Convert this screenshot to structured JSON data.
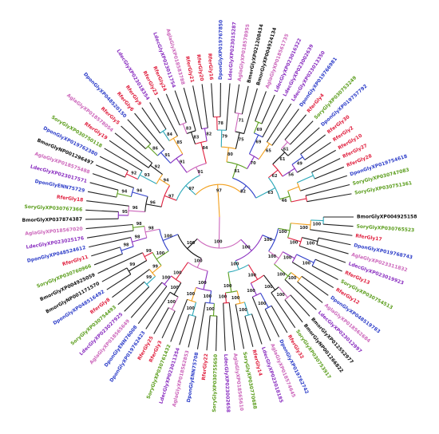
{
  "tree": {
    "colors": {
      "Dpon": "#2f3fc9",
      "Agla": "#cc66bb",
      "Rfer": "#e0203f",
      "Sory": "#5c9e1e",
      "Ldec": "#8a2fc0",
      "Bmor": "#111111"
    },
    "branch_colors": [
      "#cc66bb",
      "#8a2fc0",
      "#2f3fc9",
      "#5c9e1e",
      "#f2a01e",
      "#2aa7b8",
      "#e0203f",
      "#111111"
    ],
    "leaves": [
      {
        "label": "BmorGlyXP004925158",
        "group": "Bmor"
      },
      {
        "label": "SoryGlyXP030765523",
        "group": "Sory"
      },
      {
        "label": "RferGly17",
        "group": "Rfer"
      },
      {
        "label": "DponGlyXP019768743",
        "group": "Dpon"
      },
      {
        "label": "AglaGlyXP023311832",
        "group": "Agla"
      },
      {
        "label": "LdecGlyXP023019923",
        "group": "Ldec"
      },
      {
        "label": "RferGly13",
        "group": "Rfer"
      },
      {
        "label": "SoryGlyXP030754513",
        "group": "Sory"
      },
      {
        "label": "RferGly12",
        "group": "Rfer"
      },
      {
        "label": "DponGlyXP048519783",
        "group": "Dpon"
      },
      {
        "label": "AglaGlyXP018562684",
        "group": "Agla"
      },
      {
        "label": "LdecGlyXP023012997",
        "group": "Ldec"
      },
      {
        "label": "BmorGlyXP012552977",
        "group": "Bmor"
      },
      {
        "label": "BmorGlyNP001266822",
        "group": "Bmor"
      },
      {
        "label": "SoryGlyXP030753917",
        "group": "Sory"
      },
      {
        "label": "RferGly32",
        "group": "Rfer"
      },
      {
        "label": "DponGlyXP019762742",
        "group": "Dpon"
      },
      {
        "label": "AglaGlyXP018574645",
        "group": "Agla"
      },
      {
        "label": "LdecGlyXP023018185",
        "group": "Ldec"
      },
      {
        "label": "RferGly14",
        "group": "Rfer"
      },
      {
        "label": "SoryGlyXP030770688",
        "group": "Sory"
      },
      {
        "label": "AglaGlyXP018565610",
        "group": "Agla"
      },
      {
        "label": "LdecGlyXP023002658",
        "group": "Ldec"
      },
      {
        "label": "SoryGlyXP030755650",
        "group": "Sory"
      },
      {
        "label": "RferGly22",
        "group": "Rfer"
      },
      {
        "label": "DponGlyENN75708",
        "group": "Dpon"
      },
      {
        "label": "AglaGlyXP018562853",
        "group": "Agla"
      },
      {
        "label": "LdecGlyXP023011354",
        "group": "Ldec"
      },
      {
        "label": "SoryGlyXP030761432",
        "group": "Sory"
      },
      {
        "label": "RferGly3",
        "group": "Rfer"
      },
      {
        "label": "RferGly25",
        "group": "Rfer"
      },
      {
        "label": "DponGlyXP019762423",
        "group": "Dpon"
      },
      {
        "label": "DponGlyENN76008",
        "group": "Dpon"
      },
      {
        "label": "AglaGlyXP018565649",
        "group": "Agla"
      },
      {
        "label": "LdecGlyXP023027925",
        "group": "Ldec"
      },
      {
        "label": "SoryGlyXP030754493",
        "group": "Sory"
      },
      {
        "label": "RferGly8",
        "group": "Rfer"
      },
      {
        "label": "DponGlyXP048516492",
        "group": "Dpon"
      },
      {
        "label": "BmorGlyNP001171570",
        "group": "Bmor"
      },
      {
        "label": "BmorGlyXP004925059",
        "group": "Bmor"
      },
      {
        "label": "SoryGlyXP030760966",
        "group": "Sory"
      },
      {
        "label": "RferGly11",
        "group": "Rfer"
      },
      {
        "label": "DponGlyXP048524612",
        "group": "Dpon"
      },
      {
        "label": "LdecGlyXP023025176",
        "group": "Ldec"
      },
      {
        "label": "AglaGlyXP018567020",
        "group": "Agla"
      },
      {
        "label": "BmorGlyXP037874387",
        "group": "Bmor"
      },
      {
        "label": "SoryGlyXP030767366",
        "group": "Sory"
      },
      {
        "label": "RferGly18",
        "group": "Rfer"
      },
      {
        "label": "DponGlyENN75729",
        "group": "Dpon"
      },
      {
        "label": "LdecGlyXP023017571",
        "group": "Ldec"
      },
      {
        "label": "AglaGlyXP018575488",
        "group": "Agla"
      },
      {
        "label": "BmorGlyNP001296497",
        "group": "Bmor"
      },
      {
        "label": "DponGlyXP019762380",
        "group": "Dpon"
      },
      {
        "label": "SoryGlyXP030750118",
        "group": "Sory"
      },
      {
        "label": "RferGly19",
        "group": "Rfer"
      },
      {
        "label": "AglaGlyXP018578054",
        "group": "Agla"
      },
      {
        "label": "RferGly5",
        "group": "Rfer"
      },
      {
        "label": "DponGlyXP048520150",
        "group": "Dpon"
      },
      {
        "label": "RferGly6",
        "group": "Rfer"
      },
      {
        "label": "RferGly9",
        "group": "Rfer"
      },
      {
        "label": "LdecGlyXP023018354",
        "group": "Ldec"
      },
      {
        "label": "RferGly23",
        "group": "Rfer"
      },
      {
        "label": "RferGly24",
        "group": "Rfer"
      },
      {
        "label": "LdecGlyXP023011754",
        "group": "Ldec"
      },
      {
        "label": "AglaGlyXP018583788",
        "group": "Agla"
      },
      {
        "label": "RferGly21",
        "group": "Rfer"
      },
      {
        "label": "RferGly20",
        "group": "Rfer"
      },
      {
        "label": "RferGly16",
        "group": "Rfer"
      },
      {
        "label": "DponGlyXP019767850",
        "group": "Dpon"
      },
      {
        "label": "LdecGlyXP023015287",
        "group": "Ldec"
      },
      {
        "label": "AglaGlyXP018578955",
        "group": "Agla"
      },
      {
        "label": "BmorGlyXP021208434",
        "group": "Bmor"
      },
      {
        "label": "BmorGlyXP004924134",
        "group": "Bmor"
      },
      {
        "label": "AglaGlyXP018561735",
        "group": "Agla"
      },
      {
        "label": "LdecGlyXP023016322",
        "group": "Ldec"
      },
      {
        "label": "LdecGlyXP023002639",
        "group": "Ldec"
      },
      {
        "label": "LdecGlyXP023013350",
        "group": "Ldec"
      },
      {
        "label": "DponGlyXP019766981",
        "group": "Dpon"
      },
      {
        "label": "RferGly4",
        "group": "Rfer"
      },
      {
        "label": "SoryGlyXP030753249",
        "group": "Sory"
      },
      {
        "label": "DponGlyXP019757792",
        "group": "Dpon"
      },
      {
        "label": "RferGly30",
        "group": "Rfer"
      },
      {
        "label": "RferGly2",
        "group": "Rfer"
      },
      {
        "label": "RferGly10",
        "group": "Rfer"
      },
      {
        "label": "RferGly27",
        "group": "Rfer"
      },
      {
        "label": "RferGly28",
        "group": "Rfer"
      },
      {
        "label": "DponGlyXP019754618",
        "group": "Dpon"
      },
      {
        "label": "SoryGlyXP030747083",
        "group": "Sory"
      },
      {
        "label": "SoryGlyXP030751361",
        "group": "Sory"
      }
    ],
    "bootstrap_values": [
      "100",
      "100",
      "100",
      "100",
      "100",
      "100",
      "100",
      "100",
      "100",
      "100",
      "100",
      "100",
      "100",
      "100",
      "100",
      "100",
      "100",
      "100",
      "100",
      "100",
      "100",
      "100",
      "100",
      "100",
      "100",
      "100",
      "100",
      "100",
      "100",
      "100",
      "100",
      "100",
      "100",
      "100",
      "100",
      "100",
      "99",
      "99",
      "99",
      "99",
      "98",
      "98",
      "98",
      "98",
      "97",
      "97",
      "97",
      "96",
      "96",
      "95",
      "94",
      "94",
      "94",
      "93",
      "92",
      "92",
      "91",
      "91",
      "91",
      "86",
      "85",
      "84",
      "84",
      "83",
      "83",
      "82",
      "82",
      "81",
      "80",
      "79",
      "78",
      "75",
      "71",
      "70",
      "69",
      "69",
      "65",
      "63",
      "62",
      "61",
      "61",
      "56",
      "49",
      "46"
    ]
  }
}
